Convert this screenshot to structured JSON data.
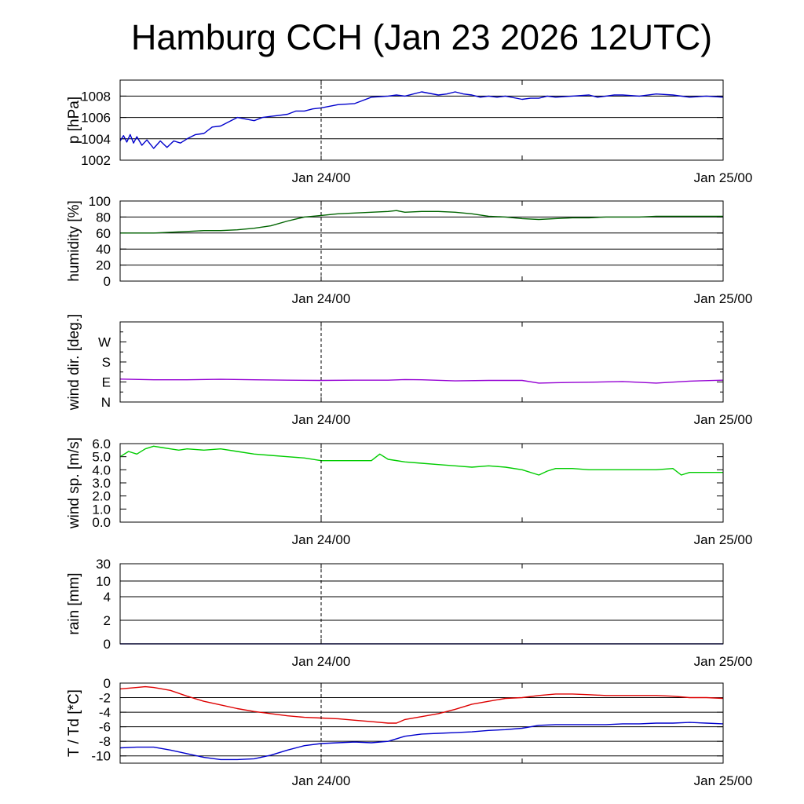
{
  "title": "Hamburg CCH (Jan 23 2026 12UTC)",
  "x_axis": {
    "start": "2026-01-23 12:00 UTC",
    "end": "2026-01-25 00:00 UTC",
    "unit": "hours",
    "tick_labels": [
      "Jan 24/00",
      "Jan 25/00"
    ],
    "tick_hours": [
      12,
      36
    ],
    "minor_tick_hours": [
      24
    ],
    "marker_hour": 12,
    "marker_style": "dashed"
  },
  "chart_data": [
    {
      "id": "pressure",
      "type": "line",
      "ylabel": "p [hPa]",
      "ylim": [
        1002,
        1009.5
      ],
      "yticks": [
        "1002",
        "1004",
        "1006",
        "1008"
      ],
      "ytick_values": [
        1002,
        1004,
        1006,
        1008
      ],
      "gridlines": [
        1004,
        1006,
        1008
      ],
      "grid": true,
      "series": [
        {
          "color": "#0000cc",
          "x": [
            0,
            0.2,
            0.4,
            0.6,
            0.8,
            1,
            1.3,
            1.6,
            2,
            2.4,
            2.8,
            3.2,
            3.6,
            4,
            4.5,
            5,
            5.5,
            6,
            6.5,
            7,
            8,
            8.5,
            9,
            9.5,
            10,
            10.5,
            11,
            11.5,
            12,
            13,
            14,
            15,
            16,
            16.5,
            17,
            18,
            19,
            19.5,
            20,
            20.5,
            21,
            21.5,
            22,
            22.5,
            23,
            24,
            24.5,
            25,
            25.5,
            26,
            27,
            28,
            28.5,
            29,
            29.5,
            30,
            31,
            32,
            33,
            34,
            35,
            36
          ],
          "y": [
            1003.8,
            1004.3,
            1003.7,
            1004.4,
            1003.6,
            1004.2,
            1003.4,
            1003.9,
            1003.1,
            1003.8,
            1003.2,
            1003.8,
            1003.6,
            1004.0,
            1004.4,
            1004.5,
            1005.1,
            1005.2,
            1005.6,
            1006.0,
            1005.7,
            1006.0,
            1006.1,
            1006.2,
            1006.3,
            1006.6,
            1006.6,
            1006.8,
            1006.9,
            1007.2,
            1007.3,
            1007.9,
            1008.0,
            1008.1,
            1008.0,
            1008.4,
            1008.1,
            1008.2,
            1008.4,
            1008.2,
            1008.1,
            1007.9,
            1008.0,
            1007.9,
            1008.0,
            1007.7,
            1007.8,
            1007.8,
            1008.0,
            1007.9,
            1008.0,
            1008.1,
            1007.9,
            1008.0,
            1008.1,
            1008.1,
            1008.0,
            1008.2,
            1008.1,
            1007.9,
            1008.0,
            1007.9
          ]
        }
      ]
    },
    {
      "id": "humidity",
      "type": "line",
      "ylabel": "humidity [%]",
      "ylim": [
        0,
        100
      ],
      "yticks": [
        "0",
        "20",
        "40",
        "60",
        "80",
        "100"
      ],
      "ytick_values": [
        0,
        20,
        40,
        60,
        80,
        100
      ],
      "gridlines": [
        20,
        40,
        60,
        80
      ],
      "grid": true,
      "series": [
        {
          "color": "#006400",
          "x": [
            0,
            1,
            2,
            3,
            4,
            5,
            6,
            7,
            8,
            9,
            10,
            11,
            12,
            13,
            14,
            15,
            16,
            16.5,
            17,
            18,
            19,
            20,
            21,
            22,
            23,
            24,
            25,
            26,
            27,
            28,
            29,
            30,
            31,
            32,
            33,
            34,
            35,
            36
          ],
          "y": [
            60,
            60,
            60,
            61,
            62,
            63,
            63,
            64,
            66,
            69,
            75,
            80,
            82,
            84,
            85,
            86,
            87,
            88,
            86,
            87,
            87,
            86,
            84,
            81,
            80,
            78,
            77,
            78,
            79,
            79,
            80,
            80,
            80,
            81,
            81,
            81,
            81,
            81
          ]
        }
      ]
    },
    {
      "id": "wind_direction",
      "type": "line",
      "ylabel": "wind dir. [deg.]",
      "ylim": [
        0,
        360
      ],
      "yticks": [
        "N",
        "E",
        "S",
        "W"
      ],
      "ytick_values": [
        0,
        90,
        180,
        270
      ],
      "gridlines": [],
      "grid": false,
      "series": [
        {
          "color": "#9400d3",
          "x": [
            0,
            2,
            4,
            6,
            8,
            10,
            12,
            14,
            16,
            17,
            18,
            20,
            22,
            24,
            25,
            26,
            27,
            28,
            30,
            32,
            34,
            36
          ],
          "y": [
            103,
            100,
            100,
            102,
            100,
            98,
            97,
            98,
            98,
            101,
            100,
            95,
            97,
            97,
            85,
            87,
            88,
            89,
            92,
            85,
            94,
            98
          ]
        }
      ]
    },
    {
      "id": "wind_speed",
      "type": "line",
      "ylabel": "wind sp. [m/s]",
      "ylim": [
        0,
        6.0
      ],
      "yticks": [
        "0.0",
        "1.0",
        "2.0",
        "3.0",
        "4.0",
        "5.0",
        "6.0"
      ],
      "ytick_values": [
        0,
        1,
        2,
        3,
        4,
        5,
        6
      ],
      "gridlines": [],
      "grid": false,
      "series": [
        {
          "color": "#00cc00",
          "x": [
            0,
            0.5,
            1,
            1.5,
            2,
            2.5,
            3,
            3.5,
            4,
            5,
            6,
            7,
            8,
            9,
            10,
            11,
            12,
            13,
            14,
            15,
            15.5,
            16,
            17,
            18,
            19,
            20,
            21,
            22,
            23,
            24,
            25,
            25.5,
            26,
            27,
            28,
            29,
            30,
            31,
            32,
            33,
            33.5,
            34,
            35,
            36
          ],
          "y": [
            5.0,
            5.4,
            5.2,
            5.6,
            5.8,
            5.7,
            5.6,
            5.5,
            5.6,
            5.5,
            5.6,
            5.4,
            5.2,
            5.1,
            5.0,
            4.9,
            4.7,
            4.7,
            4.7,
            4.7,
            5.2,
            4.8,
            4.6,
            4.5,
            4.4,
            4.3,
            4.2,
            4.3,
            4.2,
            4.0,
            3.6,
            3.9,
            4.1,
            4.1,
            4.0,
            4.0,
            4.0,
            4.0,
            4.0,
            4.1,
            3.6,
            3.8,
            3.8,
            3.8
          ]
        }
      ]
    },
    {
      "id": "rain",
      "type": "line",
      "ylabel": "rain [mm]",
      "yticks": [
        "0",
        "2",
        "4",
        "10",
        "30"
      ],
      "ytick_values": [
        0,
        2,
        4,
        10,
        30
      ],
      "gridlines": [
        2,
        4,
        10,
        30
      ],
      "grid": true,
      "series": [
        {
          "color": "#000080",
          "x": [
            0,
            36
          ],
          "y": [
            0,
            0
          ]
        }
      ]
    },
    {
      "id": "temperature",
      "type": "line",
      "ylabel": "T / Td [*C]",
      "ylim": [
        -11,
        0
      ],
      "yticks": [
        "-10",
        "-8",
        "-6",
        "-4",
        "-2",
        "0"
      ],
      "ytick_values": [
        -10,
        -8,
        -6,
        -4,
        -2,
        0
      ],
      "gridlines": [
        -10,
        -8,
        -6,
        -4,
        -2
      ],
      "grid": true,
      "series": [
        {
          "color": "#dd0000",
          "x": [
            0,
            1,
            1.5,
            2,
            3,
            4,
            5,
            6,
            7,
            8,
            9,
            10,
            11,
            12,
            13,
            14,
            15,
            16,
            16.5,
            17,
            18,
            19,
            20,
            21,
            22,
            23,
            24,
            25,
            26,
            27,
            28,
            29,
            30,
            32,
            33,
            34,
            35,
            36
          ],
          "y": [
            -0.8,
            -0.6,
            -0.5,
            -0.6,
            -1.0,
            -1.8,
            -2.5,
            -3.0,
            -3.5,
            -3.9,
            -4.2,
            -4.5,
            -4.7,
            -4.8,
            -4.9,
            -5.1,
            -5.3,
            -5.5,
            -5.5,
            -5.0,
            -4.6,
            -4.2,
            -3.6,
            -2.9,
            -2.5,
            -2.1,
            -2.0,
            -1.7,
            -1.5,
            -1.5,
            -1.6,
            -1.7,
            -1.7,
            -1.7,
            -1.8,
            -2.0,
            -2.0,
            -2.1
          ]
        },
        {
          "color": "#0000cc",
          "x": [
            0,
            1,
            2,
            3,
            4,
            5,
            6,
            7,
            8,
            9,
            10,
            11,
            12,
            13,
            14,
            15,
            16,
            17,
            18,
            19,
            20,
            21,
            22,
            23,
            24,
            25,
            26,
            27,
            28,
            29,
            30,
            31,
            32,
            33,
            34,
            35,
            36
          ],
          "y": [
            -8.9,
            -8.8,
            -8.8,
            -9.2,
            -9.7,
            -10.2,
            -10.5,
            -10.5,
            -10.4,
            -9.9,
            -9.2,
            -8.6,
            -8.3,
            -8.2,
            -8.1,
            -8.2,
            -8.0,
            -7.3,
            -7.0,
            -6.9,
            -6.8,
            -6.7,
            -6.5,
            -6.4,
            -6.2,
            -5.8,
            -5.7,
            -5.7,
            -5.7,
            -5.7,
            -5.6,
            -5.6,
            -5.5,
            -5.5,
            -5.4,
            -5.5,
            -5.6
          ]
        }
      ]
    }
  ]
}
